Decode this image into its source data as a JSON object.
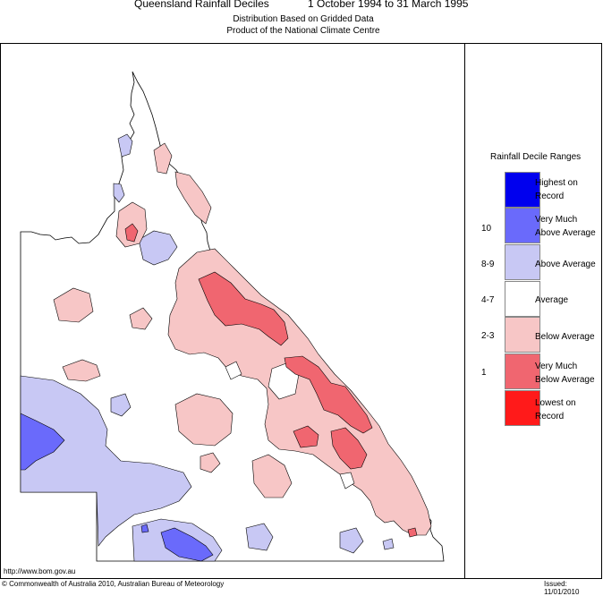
{
  "header": {
    "title": "Queensland Rainfall Deciles",
    "dates": "1 October 1994 to 31 March 1995",
    "subtitle1": "Distribution Based on Gridded Data",
    "subtitle2": "Product of the National Climate Centre"
  },
  "legend": {
    "title": "Rainfall Decile Ranges",
    "items": [
      {
        "range": "",
        "label_line1": "Highest on",
        "label_line2": "Record",
        "color": "#0000ee"
      },
      {
        "range": "10",
        "label_line1": "Very Much",
        "label_line2": "Above Average",
        "color": "#6a6afb"
      },
      {
        "range": "8-9",
        "label_line1": "Above Average",
        "label_line2": "",
        "color": "#c8c8f4"
      },
      {
        "range": "4-7",
        "label_line1": "Average",
        "label_line2": "",
        "color": "#ffffff"
      },
      {
        "range": "2-3",
        "label_line1": "Below Average",
        "label_line2": "",
        "color": "#f7c6c6"
      },
      {
        "range": "1",
        "label_line1": "Very Much",
        "label_line2": "Below Average",
        "color": "#f06670"
      },
      {
        "range": "",
        "label_line1": "Lowest on",
        "label_line2": "Record",
        "color": "#ff1a1a"
      }
    ]
  },
  "footer": {
    "url": "http://www.bom.gov.au",
    "copyright": "© Commonwealth of Australia 2010, Australian Bureau of Meteorology",
    "issued": "Issued: 11/01/2010"
  }
}
